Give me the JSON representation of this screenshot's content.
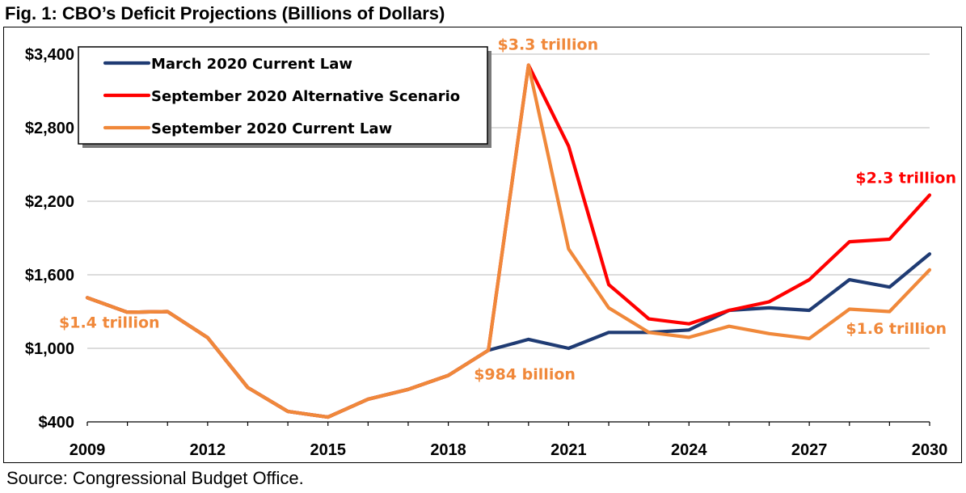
{
  "figure": {
    "title": "Fig. 1: CBO’s Deficit Projections (Billions of Dollars)",
    "source": "Source: Congressional Budget Office."
  },
  "colors": {
    "march_current_law": "#1f3b73",
    "sept_alternative": "#ff0000",
    "sept_current_law": "#f0883a",
    "gridline": "#c8c8c8",
    "axis": "#000000"
  },
  "chart_data": {
    "type": "line",
    "title": "Fig. 1: CBO’s Deficit Projections (Billions of Dollars)",
    "xlabel": "",
    "ylabel": "",
    "x": [
      2009,
      2010,
      2011,
      2012,
      2013,
      2014,
      2015,
      2016,
      2017,
      2018,
      2019,
      2020,
      2021,
      2022,
      2023,
      2024,
      2025,
      2026,
      2027,
      2028,
      2029,
      2030
    ],
    "x_ticks": [
      "2009",
      "2012",
      "2015",
      "2018",
      "2021",
      "2024",
      "2027",
      "2030"
    ],
    "x_tick_values": [
      2009,
      2012,
      2015,
      2018,
      2021,
      2024,
      2027,
      2030
    ],
    "y_ticks": [
      "$400",
      "$1,000",
      "$1,600",
      "$2,200",
      "$2,800",
      "$3,400"
    ],
    "y_tick_values": [
      400,
      1000,
      1600,
      2200,
      2800,
      3400
    ],
    "ylim": [
      400,
      3400
    ],
    "grid": true,
    "legend_position": "top-left",
    "series": [
      {
        "name": "March 2020 Current Law",
        "color": "#1f3b73",
        "values": [
          1413,
          1294,
          1300,
          1087,
          680,
          485,
          439,
          585,
          665,
          779,
          984,
          1073,
          1000,
          1130,
          1130,
          1150,
          1310,
          1330,
          1310,
          1560,
          1500,
          1770
        ]
      },
      {
        "name": "September 2020 Alternative Scenario",
        "color": "#ff0000",
        "values": [
          1413,
          1294,
          1300,
          1087,
          680,
          485,
          439,
          585,
          665,
          779,
          984,
          3311,
          2650,
          1520,
          1240,
          1200,
          1310,
          1380,
          1560,
          1870,
          1890,
          2250
        ]
      },
      {
        "name": "September 2020 Current Law",
        "color": "#f0883a",
        "values": [
          1413,
          1294,
          1300,
          1087,
          680,
          485,
          439,
          585,
          665,
          779,
          984,
          3311,
          1810,
          1330,
          1130,
          1090,
          1180,
          1120,
          1080,
          1320,
          1300,
          1640
        ]
      }
    ],
    "annotations": [
      {
        "text": "$1.4 trillion",
        "color": "#f0883a"
      },
      {
        "text": "$984 billion",
        "color": "#f0883a"
      },
      {
        "text": "$3.3 trillion",
        "color": "#f0883a"
      },
      {
        "text": "$2.3 trillion",
        "color": "#ff0000"
      },
      {
        "text": "$1.6 trillion",
        "color": "#f0883a"
      }
    ]
  }
}
